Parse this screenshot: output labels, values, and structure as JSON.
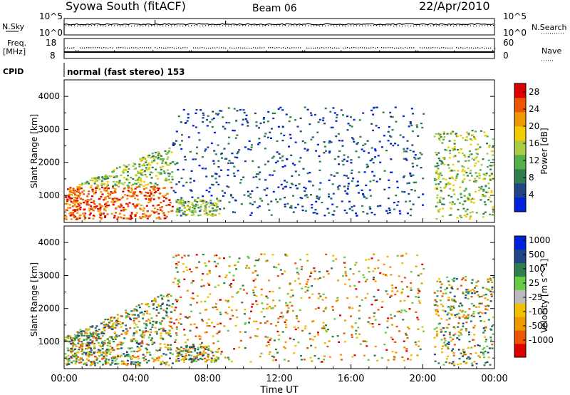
{
  "header": {
    "title": "Syowa South (fitACF)",
    "beam": "Beam 06",
    "date": "22/Apr/2010"
  },
  "summary": {
    "nsky_label": "N.Sky",
    "nsky_ticks": [
      "10^5",
      "10^0"
    ],
    "nsearch_label": "N.Search",
    "nsearch_ticks": [
      "10^5",
      "10^0"
    ],
    "freq_label": "Freq.",
    "freq_unit": "[MHz]",
    "freq_ticks": [
      "18",
      "8"
    ],
    "nave_label": "Nave",
    "nave_ticks": [
      "60",
      "0"
    ],
    "cpid_label": "CPID",
    "cpid_text": "normal (fast stereo) 153"
  },
  "colors": {
    "power": [
      "#0022dd",
      "#224488",
      "#2f7f4e",
      "#55b04a",
      "#aacc44",
      "#f0cc00",
      "#ee9900",
      "#ee5500",
      "#dd0000"
    ],
    "velocity": [
      "#dd0000",
      "#ee5500",
      "#ee9900",
      "#f0c000",
      "#bbbbbb",
      "#66cc44",
      "#2f7f4e",
      "#224488",
      "#0022dd"
    ]
  },
  "chart_data": [
    {
      "type": "heatmap",
      "name": "power",
      "ylabel": "Slant Range [km]",
      "yticks": [
        1000,
        2000,
        3000,
        4000
      ],
      "ylim": [
        180,
        4500
      ],
      "xlim": [
        0,
        24
      ],
      "colorbar_label": "Power [dB]",
      "colorbar_ticks": [
        4,
        8,
        12,
        16,
        20,
        24,
        28
      ],
      "colorbar_range": [
        0,
        30
      ]
    },
    {
      "type": "heatmap",
      "name": "velocity",
      "ylabel": "Slant Range [km]",
      "yticks": [
        1000,
        2000,
        3000,
        4000
      ],
      "ylim": [
        180,
        4500
      ],
      "xlim": [
        0,
        24
      ],
      "colorbar_label": "Velocity [m s^-1]",
      "colorbar_ticks": [
        "1000",
        "500",
        "100",
        "25",
        "-25",
        "-100",
        "-500",
        "-1000"
      ]
    }
  ],
  "xaxis": {
    "ticks": [
      "00:00",
      "04:00",
      "08:00",
      "12:00",
      "16:00",
      "20:00",
      "00:00"
    ],
    "label": "Time UT"
  }
}
